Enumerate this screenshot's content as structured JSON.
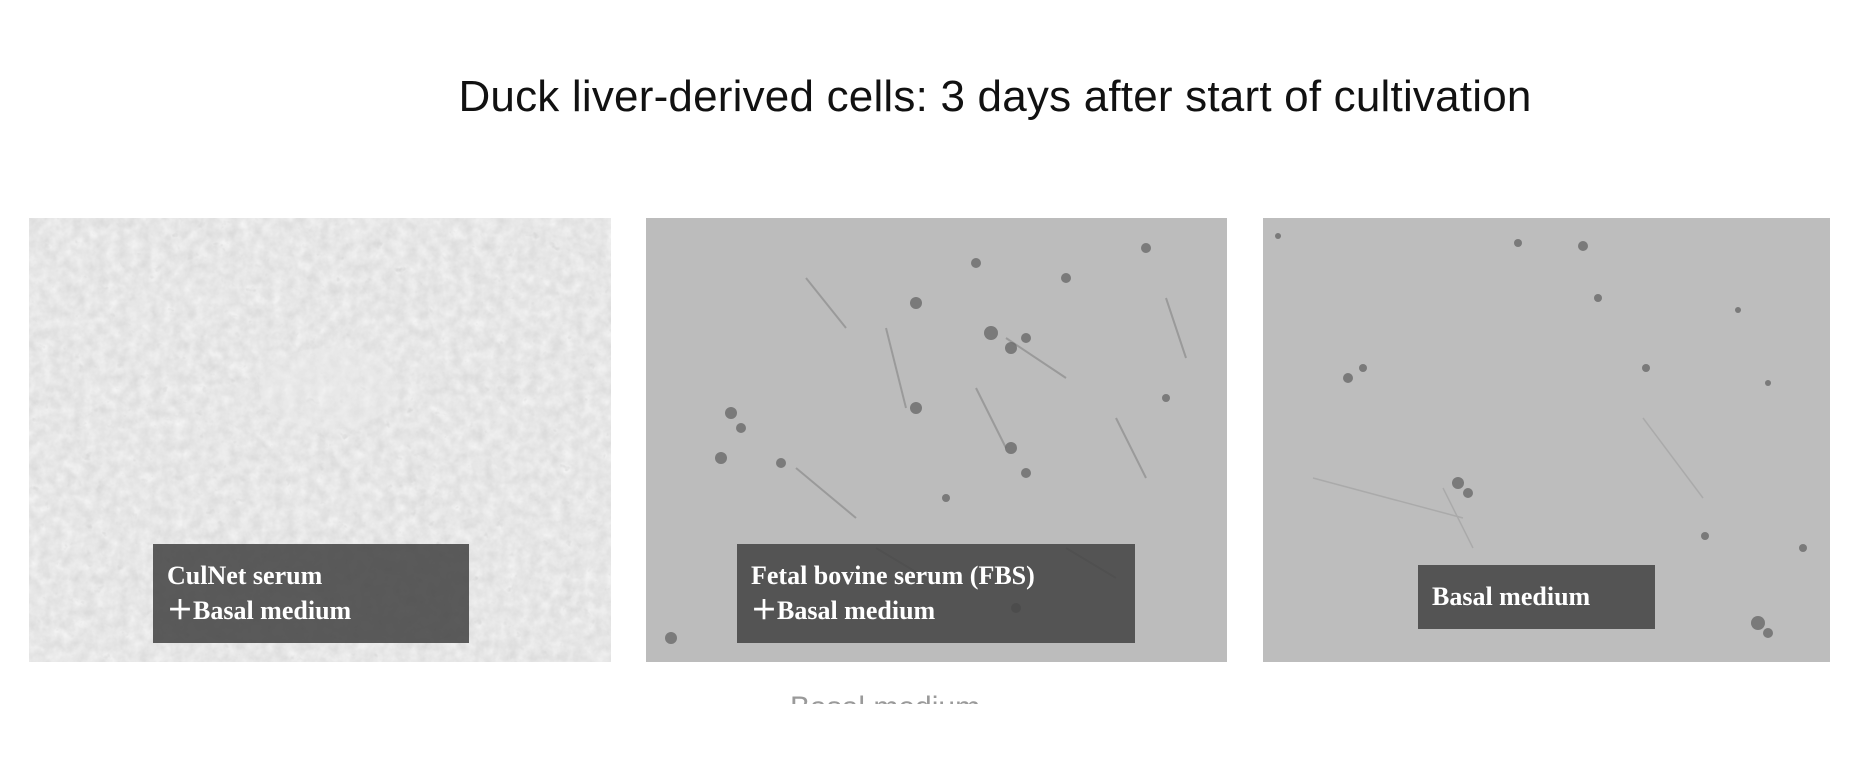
{
  "title": "Duck liver-derived cells: 3 days after start of cultivation",
  "panels": [
    {
      "label_line1": "CulNet serum",
      "label_line2": "＋Basal medium"
    },
    {
      "label_line1": "Fetal bovine serum (FBS)",
      "label_line2": "＋Basal medium"
    },
    {
      "label_line1": "Basal medium"
    }
  ],
  "partially_hidden_caption": "Basal medium"
}
